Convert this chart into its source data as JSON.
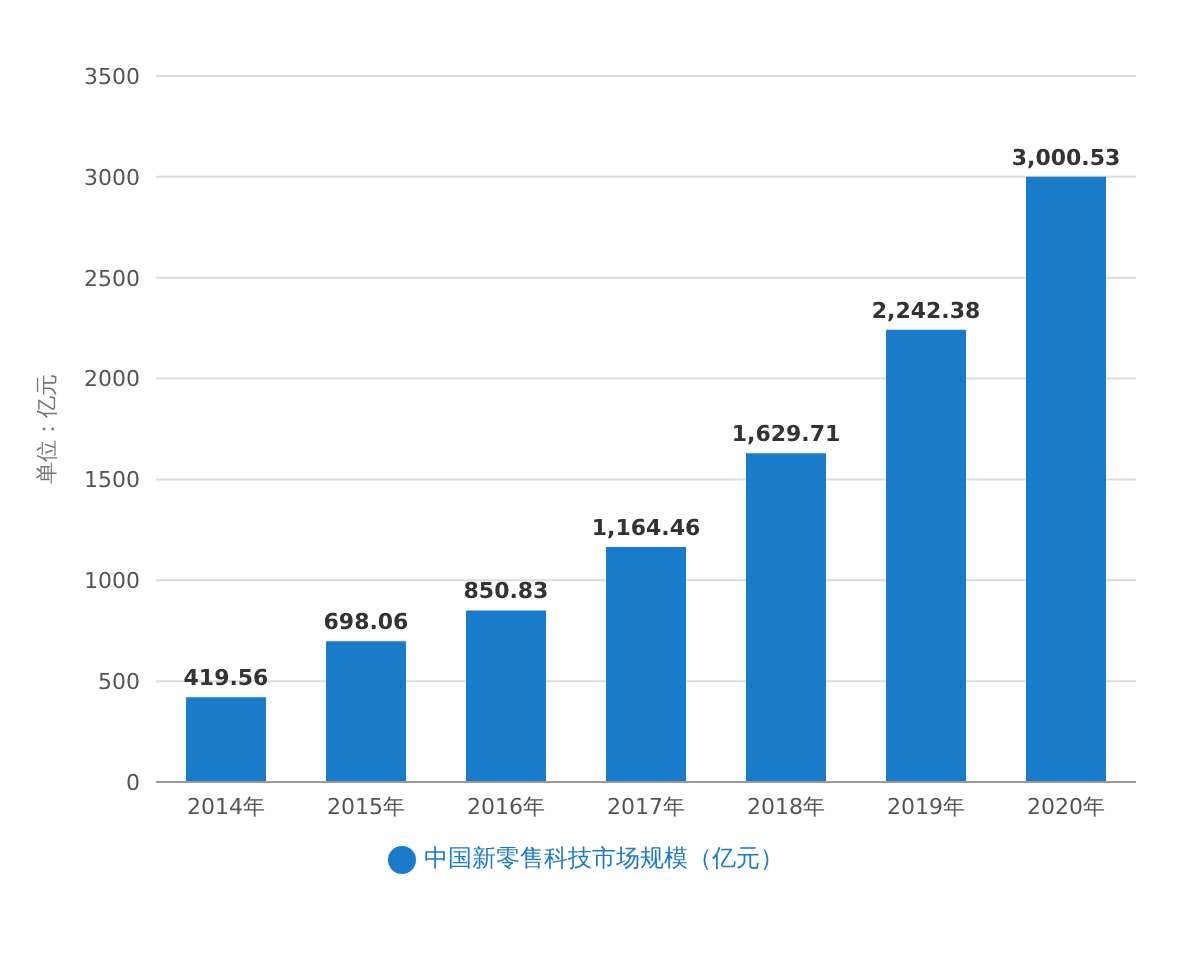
{
  "chart_data": {
    "type": "bar",
    "ylabel": "单位：亿元",
    "categories": [
      "2014年",
      "2015年",
      "2016年",
      "2017年",
      "2018年",
      "2019年",
      "2020年"
    ],
    "series": [
      {
        "name": "中国新零售科技市场规模（亿元）",
        "color": "#1a7cc8",
        "values": [
          419.56,
          698.06,
          850.83,
          1164.46,
          1629.71,
          2242.38,
          3000.53
        ],
        "value_labels": [
          "419.56",
          "698.06",
          "850.83",
          "1,164.46",
          "1,629.71",
          "2,242.38",
          "3,000.53"
        ]
      }
    ],
    "ylim": [
      0,
      3500
    ],
    "yticks": [
      0,
      500,
      1000,
      1500,
      2000,
      2500,
      3000,
      3500
    ],
    "grid": "y",
    "legend": "bottom"
  }
}
